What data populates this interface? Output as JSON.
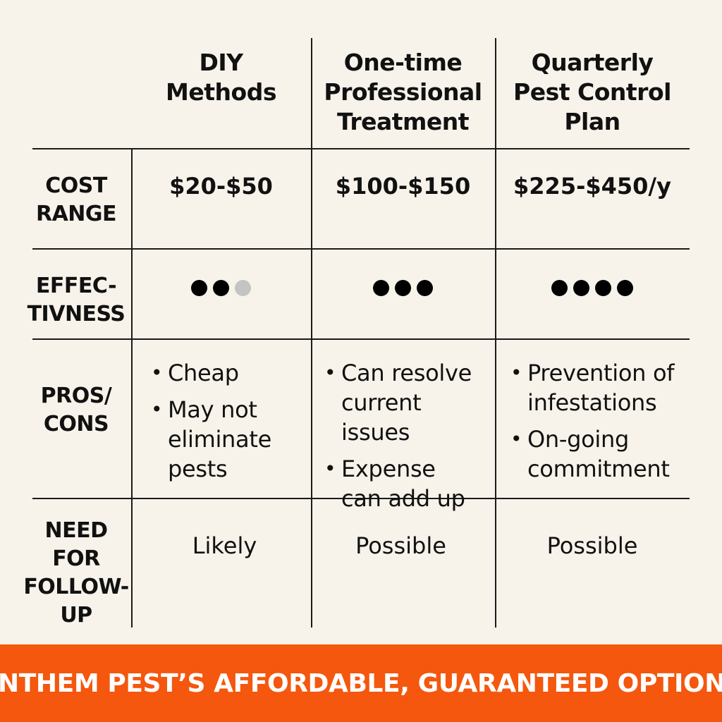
{
  "columns": [
    {
      "lines": [
        "DIY",
        "Methods"
      ]
    },
    {
      "lines": [
        "One-time",
        "Professional",
        "Treatment"
      ]
    },
    {
      "lines": [
        "Quarterly",
        "Pest Control",
        "Plan"
      ]
    }
  ],
  "rows": {
    "cost": {
      "label_lines": [
        "COST",
        "RANGE"
      ],
      "values": [
        "$20-$50",
        "$100-$150",
        "$225-$450/y"
      ]
    },
    "effectiveness": {
      "label_lines": [
        "EFFEC-",
        "TIVNESS"
      ],
      "ratings": [
        {
          "filled": 2,
          "empty": 1
        },
        {
          "filled": 3,
          "empty": 0
        },
        {
          "filled": 4,
          "empty": 0
        }
      ]
    },
    "pros_cons": {
      "label_lines": [
        "PROS/",
        "CONS"
      ],
      "cells": [
        [
          {
            "lines": [
              "Cheap"
            ]
          },
          {
            "lines": [
              "May not",
              "eliminate",
              "pests"
            ]
          }
        ],
        [
          {
            "lines": [
              "Can resolve",
              "current issues"
            ]
          },
          {
            "lines": [
              "Expense",
              "can add up"
            ]
          }
        ],
        [
          {
            "lines": [
              "Prevention of",
              "infestations"
            ]
          },
          {
            "lines": [
              "On-going",
              "commitment"
            ]
          }
        ]
      ]
    },
    "followup": {
      "label_lines": [
        "NEED",
        "FOR",
        "FOLLOW-",
        "UP"
      ],
      "values": [
        "Likely",
        "Possible",
        "Possible"
      ]
    }
  },
  "bullet_char": "•",
  "banner": {
    "text": "ANTHEM PEST’S AFFORDABLE, GUARANTEED OPTIONS"
  },
  "colors": {
    "background": "#f7f3ea",
    "banner": "#f4570d",
    "grid": "#1a1a1a",
    "dot_filled": "#000000",
    "dot_empty": "#c4c4c4"
  }
}
